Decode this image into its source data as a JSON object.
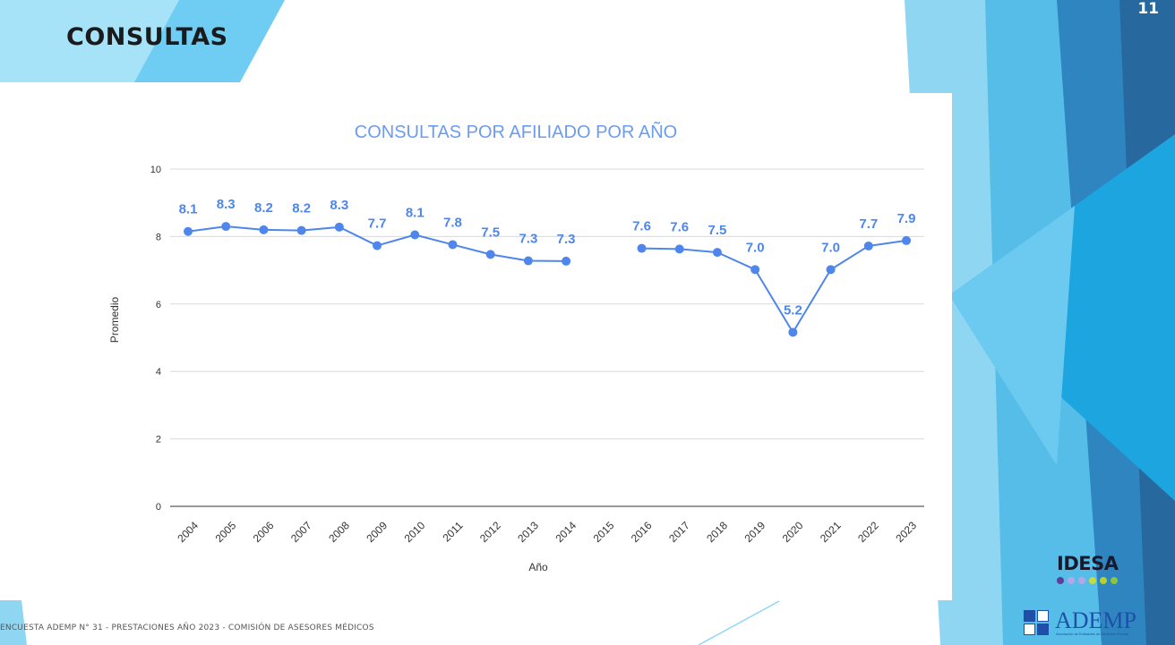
{
  "slide": {
    "title": "CONSULTAS",
    "page_number": "11",
    "footer": "ENCUESTA ADEMP N° 31 - PRESTACIONES AÑO 2023 - COMISIÓN DE ASESORES MÉDICOS"
  },
  "logos": {
    "idesa_text": "IDESA",
    "idesa_dot_colors": [
      "#5b3f9a",
      "#b7a6e6",
      "#b7a6e6",
      "#c5dc3b",
      "#b5d22b",
      "#8cc63f"
    ],
    "ademp_text": "ADEMP",
    "ademp_subtext": "Asociación de Entidades de Medicina Privada"
  },
  "colors": {
    "series": "#4f86ec",
    "title": "#6b9cee",
    "grid": "#d9d9d9",
    "accent_blue": "#1fa3dc",
    "accent_dark": "#2b6e9e"
  },
  "chart_data": {
    "type": "line",
    "title": "CONSULTAS POR AFILIADO POR AÑO",
    "xlabel": "Año",
    "ylabel": "Promedio",
    "ylim": [
      0,
      10
    ],
    "yticks": [
      0,
      2,
      4,
      6,
      8,
      10
    ],
    "grid": true,
    "categories": [
      "2004",
      "2005",
      "2006",
      "2007",
      "2008",
      "2009",
      "2010",
      "2011",
      "2012",
      "2013",
      "2014",
      "2015",
      "2016",
      "2017",
      "2018",
      "2019",
      "2020",
      "2021",
      "2022",
      "2023"
    ],
    "series": [
      {
        "values": [
          8.15,
          8.3,
          8.2,
          8.18,
          8.28,
          7.73,
          8.05,
          7.76,
          7.47,
          7.28,
          7.27,
          null,
          7.65,
          7.63,
          7.53,
          7.02,
          5.16,
          7.02,
          7.72,
          7.88
        ],
        "labels": [
          "8.1",
          "8.3",
          "8.2",
          "8.2",
          "8.3",
          "7.7",
          "8.1",
          "7.8",
          "7.5",
          "7.3",
          "7.3",
          "",
          "7.6",
          "7.6",
          "7.5",
          "7.0",
          "5.2",
          "7.0",
          "7.7",
          "7.9"
        ]
      }
    ]
  }
}
